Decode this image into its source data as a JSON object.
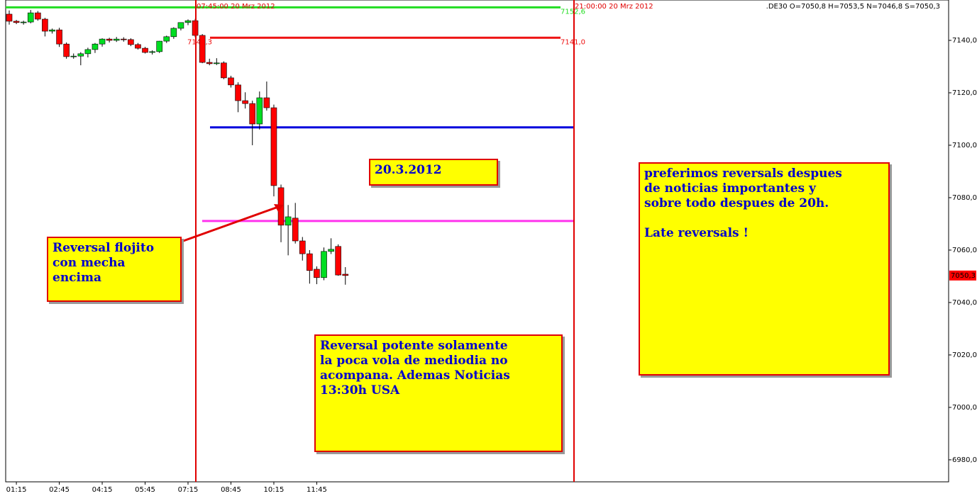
{
  "chart_data": {
    "type": "candlestick",
    "header": ".DE30 O=7050,8 H=7053,5 N=7046,8 S=7050,3",
    "categories": [
      null,
      "01:15",
      null,
      null,
      null,
      null,
      null,
      "02:45",
      null,
      null,
      null,
      null,
      null,
      "04:15",
      null,
      null,
      null,
      null,
      null,
      "05:45",
      null,
      null,
      null,
      null,
      null,
      "07:15",
      null,
      null,
      null,
      null,
      null,
      "08:45",
      null,
      null,
      null,
      null,
      null,
      "10:15",
      null,
      null,
      null,
      null,
      null,
      "11:45",
      null,
      null,
      null,
      null
    ],
    "open": [
      7150.0,
      7147.3,
      7146.8,
      7147.0,
      7150.5,
      7148.1,
      7143.5,
      7144.0,
      7138.6,
      7133.8,
      7134.0,
      7134.9,
      7136.5,
      7138.6,
      7140.5,
      7140.0,
      7140.5,
      7140.3,
      7138.4,
      7137.0,
      7135.4,
      7135.7,
      7139.7,
      7141.4,
      7144.6,
      7146.8,
      7147.5,
      7141.9,
      7131.6,
      7131.1,
      7131.4,
      7125.7,
      7123.0,
      7117.0,
      7115.9,
      7108.1,
      7118.1,
      7114.3,
      7083.8,
      7069.5,
      7072.2,
      7063.5,
      7058.6,
      7052.7,
      7049.5,
      7059.5,
      7061.4,
      7050.8
    ],
    "high": [
      7151.4,
      7147.8,
      7147.5,
      7151.6,
      7151.2,
      7148.6,
      7144.5,
      7144.8,
      7139.2,
      7135.0,
      7135.5,
      7137.2,
      7139.0,
      7140.8,
      7141.0,
      7141.3,
      7141.2,
      7140.8,
      7139.0,
      7137.5,
      7136.2,
      7139.8,
      7141.8,
      7145.0,
      7146.8,
      7148.0,
      7148.2,
      7142.4,
      7133.0,
      7133.2,
      7132.0,
      7126.5,
      7124.0,
      7120.2,
      7117.0,
      7120.5,
      7124.3,
      7115.5,
      7085.0,
      7077.2,
      7078.0,
      7065.0,
      7060.0,
      7053.8,
      7061.0,
      7064.5,
      7062.2,
      7053.5
    ],
    "low": [
      7146.0,
      7146.2,
      7146.0,
      7146.5,
      7147.5,
      7141.5,
      7142.6,
      7137.5,
      7133.0,
      7133.0,
      7130.5,
      7133.5,
      7135.2,
      7137.6,
      7139.2,
      7139.4,
      7139.5,
      7137.8,
      7136.5,
      7135.0,
      7134.6,
      7135.2,
      7139.0,
      7140.6,
      7143.8,
      7145.8,
      7141.2,
      7131.3,
      7130.5,
      7130.6,
      7125.2,
      7122.0,
      7112.6,
      7114.0,
      7100.0,
      7106.0,
      7113.2,
      7080.5,
      7063.0,
      7058.0,
      7062.5,
      7056.0,
      7047.2,
      7047.0,
      7048.5,
      7058.5,
      7050.2,
      7046.8
    ],
    "close": [
      7147.3,
      7146.8,
      7147.0,
      7150.5,
      7148.1,
      7143.5,
      7144.0,
      7138.6,
      7133.8,
      7134.0,
      7134.9,
      7136.5,
      7138.6,
      7140.5,
      7140.0,
      7140.5,
      7140.3,
      7138.4,
      7137.0,
      7135.4,
      7135.7,
      7139.7,
      7141.4,
      7144.6,
      7146.8,
      7147.5,
      7141.9,
      7131.6,
      7131.1,
      7131.4,
      7125.7,
      7123.0,
      7117.0,
      7115.9,
      7108.1,
      7118.1,
      7114.3,
      7084.6,
      7069.5,
      7072.7,
      7063.5,
      7058.6,
      7052.2,
      7049.5,
      7059.5,
      7060.3,
      7050.5,
      7050.3
    ],
    "up_color": "#00dd22",
    "down_color": "#ff0000",
    "last_price_label": "7050,3",
    "ylim": [
      6971.6,
      7155.4
    ],
    "yticks": [
      {
        "value": 6980,
        "label": "6980,0"
      },
      {
        "value": 7000,
        "label": "7000,0"
      },
      {
        "value": 7020,
        "label": "7020,0"
      },
      {
        "value": 7040,
        "label": "7040,0"
      },
      {
        "value": 7060,
        "label": "7060,0"
      },
      {
        "value": 7080,
        "label": "7080,0"
      },
      {
        "value": 7100,
        "label": "7100,0"
      },
      {
        "value": 7120,
        "label": "7120,0"
      },
      {
        "value": 7140,
        "label": "7140,0"
      }
    ],
    "levels": [
      {
        "value": 7152.6,
        "label": "7152,6",
        "color": "#22dd22"
      },
      {
        "value": 7141.0,
        "label": "7141,0",
        "start_label": "7141,3",
        "color": "#ee1111"
      },
      {
        "value": 7106.8,
        "color": "#0000dd"
      },
      {
        "value": 7071.1,
        "color": "#ff33ee"
      }
    ],
    "markers": [
      {
        "label": "07:45:00 20 Mrz 2012"
      },
      {
        "label": "21:00:00 20 Mrz 2012"
      }
    ],
    "annotations": [
      {
        "lines": [
          "20.3.2012"
        ]
      },
      {
        "lines": [
          "Reversal flojito",
          "con mecha",
          "encima"
        ]
      },
      {
        "lines": [
          "Reversal potente solamente",
          "la poca vola de mediodia no",
          "acompana. Ademas Noticias",
          "13:30h USA"
        ]
      },
      {
        "lines": [
          "preferimos reversals despues",
          "de noticias importantes y",
          "sobre todo despues de 20h.",
          "",
          "Late reversals !"
        ]
      }
    ]
  }
}
